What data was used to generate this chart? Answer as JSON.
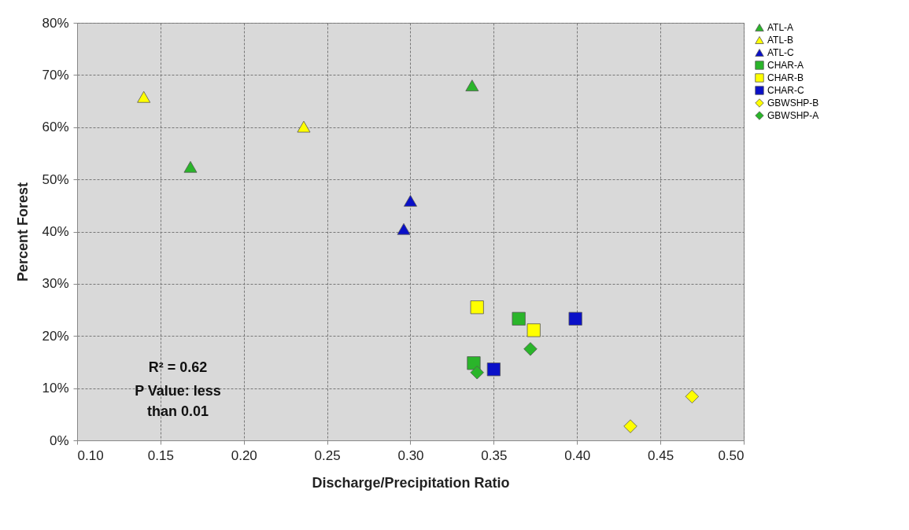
{
  "chart_data": {
    "type": "scatter",
    "xlabel": "Discharge/Precipitation Ratio",
    "ylabel": "Percent Forest",
    "xlim": [
      0.1,
      0.5
    ],
    "xticks": [
      {
        "value": 0.1,
        "label": "0.10"
      },
      {
        "value": 0.15,
        "label": "0.15"
      },
      {
        "value": 0.2,
        "label": "0.20"
      },
      {
        "value": 0.25,
        "label": "0.25"
      },
      {
        "value": 0.3,
        "label": "0.30"
      },
      {
        "value": 0.35,
        "label": "0.35"
      },
      {
        "value": 0.4,
        "label": "0.40"
      },
      {
        "value": 0.45,
        "label": "0.45"
      },
      {
        "value": 0.5,
        "label": "0.50"
      }
    ],
    "ylim": [
      0,
      80
    ],
    "yticks": [
      {
        "value": 0,
        "label": "0%"
      },
      {
        "value": 10,
        "label": "10%"
      },
      {
        "value": 20,
        "label": "20%"
      },
      {
        "value": 30,
        "label": "30%"
      },
      {
        "value": 40,
        "label": "40%"
      },
      {
        "value": 50,
        "label": "50%"
      },
      {
        "value": 60,
        "label": "60%"
      },
      {
        "value": 70,
        "label": "70%"
      },
      {
        "value": 80,
        "label": "80%"
      }
    ],
    "grid": true,
    "legend": "right",
    "annotations": [
      "R² = 0.62",
      "P Value: less\nthan 0.01"
    ],
    "series": [
      {
        "name": "ATL-A",
        "color": "#2ab52a",
        "marker": "triangle",
        "x": [
          0.337,
          0.168
        ],
        "values": [
          68,
          52.4
        ]
      },
      {
        "name": "ATL-B",
        "color": "#ffff00",
        "marker": "triangle",
        "x": [
          0.14,
          0.236
        ],
        "values": [
          65.8,
          60.1
        ]
      },
      {
        "name": "ATL-C",
        "color": "#0a10c8",
        "marker": "triangle",
        "x": [
          0.3,
          0.296
        ],
        "values": [
          45.9,
          40.5
        ]
      },
      {
        "name": "CHAR-A",
        "color": "#2ab52a",
        "marker": "square",
        "x": [
          0.365,
          0.338
        ],
        "values": [
          23.3,
          14.8
        ]
      },
      {
        "name": "CHAR-B",
        "color": "#ffff00",
        "marker": "square",
        "x": [
          0.34,
          0.374
        ],
        "values": [
          25.5,
          21.1
        ]
      },
      {
        "name": "CHAR-C",
        "color": "#0a10c8",
        "marker": "square",
        "x": [
          0.399,
          0.35
        ],
        "values": [
          23.3,
          13.6
        ]
      },
      {
        "name": "GBWSHP-B",
        "color": "#ffff00",
        "marker": "diamond",
        "x": [
          0.432,
          0.469
        ],
        "values": [
          2.7,
          8.4
        ]
      },
      {
        "name": "GBWSHP-A",
        "color": "#2ab52a",
        "marker": "diamond",
        "x": [
          0.372,
          0.34
        ],
        "values": [
          17.5,
          13
        ]
      }
    ]
  }
}
